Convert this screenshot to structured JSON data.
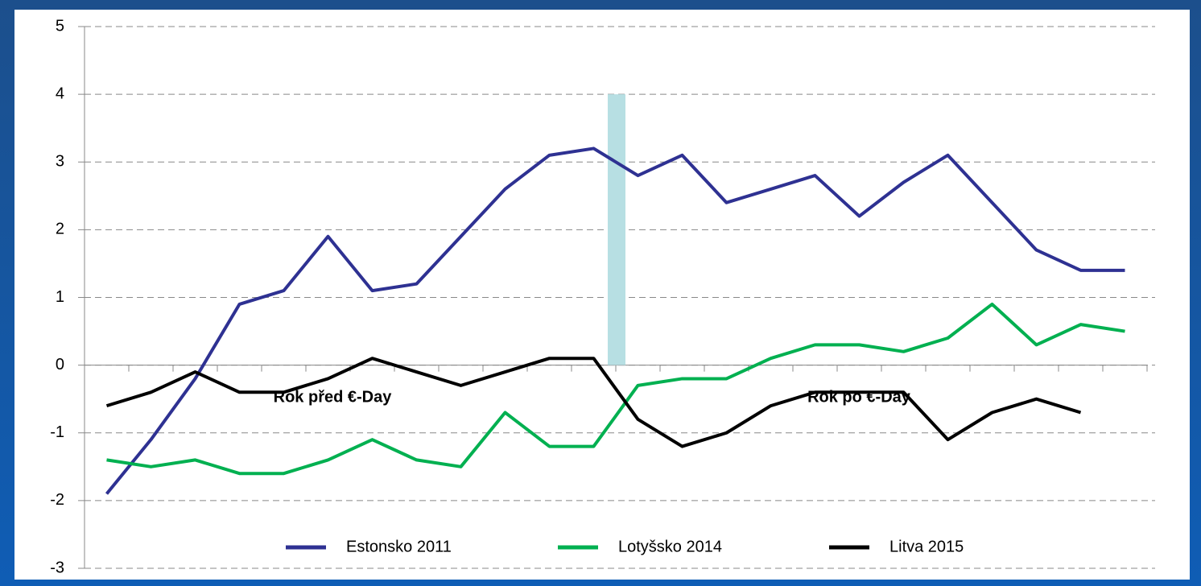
{
  "chart_data": {
    "type": "line",
    "categories": [
      null,
      null,
      null,
      null,
      null,
      null,
      null,
      null,
      null,
      null,
      null,
      null,
      null,
      null,
      null,
      null,
      null,
      null,
      null,
      null,
      null,
      null,
      null,
      null
    ],
    "series": [
      {
        "name": "Estonsko 2011",
        "color": "#2e3192",
        "values": [
          -1.9,
          -1.1,
          -0.2,
          0.9,
          1.1,
          1.9,
          1.1,
          1.2,
          1.9,
          2.6,
          3.1,
          3.2,
          2.8,
          3.1,
          2.4,
          2.6,
          2.8,
          2.2,
          2.7,
          3.1,
          2.4,
          1.7,
          1.4,
          1.4
        ]
      },
      {
        "name": "Lotyšsko 2014",
        "color": "#00b050",
        "values": [
          -1.4,
          -1.5,
          -1.4,
          -1.6,
          -1.6,
          -1.4,
          -1.1,
          -1.4,
          -1.5,
          -0.7,
          -1.2,
          -1.2,
          -0.3,
          -0.2,
          -0.2,
          0.1,
          0.3,
          0.3,
          0.2,
          0.4,
          0.9,
          0.3,
          0.6,
          0.5
        ]
      },
      {
        "name": "Litva 2015",
        "color": "#000000",
        "values": [
          -0.6,
          -0.4,
          -0.1,
          -0.4,
          -0.4,
          -0.2,
          0.1,
          -0.1,
          -0.3,
          -0.1,
          0.1,
          0.1,
          -0.8,
          -1.2,
          -1.0,
          -0.6,
          -0.4,
          -0.4,
          -0.4,
          -1.1,
          -0.7,
          -0.5,
          -0.7,
          null
        ]
      }
    ],
    "marker_values": [
      null,
      null,
      null,
      null,
      null,
      null,
      null,
      null,
      null,
      null,
      null,
      null,
      4,
      null,
      null,
      null,
      null,
      null,
      null,
      null,
      null,
      null,
      null,
      null
    ],
    "marker_color": "#b7dfe3",
    "annotations": [
      "Rok před €-Day",
      "Rok po €-Day"
    ],
    "ylim": [
      -3,
      5
    ],
    "yticks": [
      -3,
      -2,
      -1,
      0,
      1,
      2,
      3,
      4,
      5
    ],
    "grid": true,
    "legend": "bottom"
  }
}
